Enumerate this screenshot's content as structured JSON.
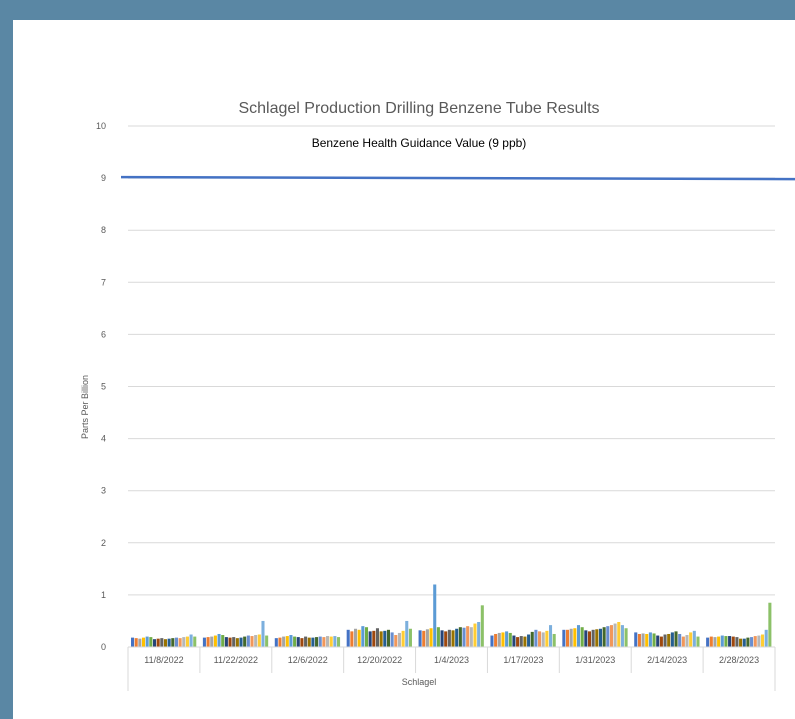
{
  "chart_data": {
    "type": "bar",
    "title": "Schlagel Production Drilling Benzene Tube Results",
    "ylabel": "Parts Per Billion",
    "xlabel": "Schlagel",
    "ylim": [
      0,
      10
    ],
    "yticks": [
      0,
      1,
      2,
      3,
      4,
      5,
      6,
      7,
      8,
      9,
      10
    ],
    "grid": true,
    "reference_line": {
      "label": "Benzene Health Guidance Value (9 ppb)",
      "value": 9,
      "color": "#4472c4"
    },
    "categories": [
      "11/8/2022",
      "11/22/2022",
      "12/6/2022",
      "12/20/2022",
      "1/4/2023",
      "1/17/2023",
      "1/31/2023",
      "2/14/2023",
      "2/28/2023"
    ],
    "series_colors": [
      "#4472c4",
      "#ed7d31",
      "#a5a5a5",
      "#ffc000",
      "#5b9bd5",
      "#70ad47",
      "#264478",
      "#9e480e",
      "#636363",
      "#997300",
      "#255e91",
      "#43682b",
      "#698ed0",
      "#f1975a",
      "#b7b7b7",
      "#ffcd33",
      "#7cafdd",
      "#8cc168"
    ],
    "groups": [
      [
        0.18,
        0.17,
        0.16,
        0.18,
        0.2,
        0.19,
        0.15,
        0.16,
        0.17,
        0.15,
        0.16,
        0.17,
        0.18,
        0.17,
        0.19,
        0.2,
        0.24,
        0.2
      ],
      [
        0.18,
        0.19,
        0.2,
        0.22,
        0.25,
        0.23,
        0.19,
        0.18,
        0.19,
        0.17,
        0.18,
        0.2,
        0.22,
        0.21,
        0.23,
        0.24,
        0.5,
        0.22
      ],
      [
        0.17,
        0.18,
        0.2,
        0.21,
        0.23,
        0.2,
        0.19,
        0.17,
        0.2,
        0.18,
        0.18,
        0.19,
        0.2,
        0.19,
        0.21,
        0.2,
        0.21,
        0.19
      ],
      [
        0.33,
        0.3,
        0.35,
        0.33,
        0.4,
        0.38,
        0.3,
        0.31,
        0.36,
        0.3,
        0.31,
        0.33,
        0.28,
        0.23,
        0.27,
        0.31,
        0.5,
        0.35
      ],
      [
        0.32,
        0.31,
        0.34,
        0.36,
        1.2,
        0.38,
        0.32,
        0.3,
        0.33,
        0.32,
        0.35,
        0.38,
        0.37,
        0.4,
        0.38,
        0.45,
        0.48,
        0.8
      ],
      [
        0.22,
        0.25,
        0.27,
        0.28,
        0.3,
        0.27,
        0.22,
        0.19,
        0.21,
        0.2,
        0.24,
        0.29,
        0.33,
        0.3,
        0.28,
        0.31,
        0.42,
        0.25
      ],
      [
        0.33,
        0.33,
        0.35,
        0.36,
        0.42,
        0.38,
        0.32,
        0.3,
        0.33,
        0.34,
        0.35,
        0.38,
        0.4,
        0.42,
        0.45,
        0.48,
        0.42,
        0.36
      ],
      [
        0.28,
        0.25,
        0.26,
        0.25,
        0.28,
        0.26,
        0.22,
        0.2,
        0.24,
        0.25,
        0.28,
        0.3,
        0.25,
        0.2,
        0.23,
        0.28,
        0.31,
        0.2
      ],
      [
        0.18,
        0.2,
        0.19,
        0.2,
        0.22,
        0.21,
        0.21,
        0.2,
        0.19,
        0.16,
        0.16,
        0.18,
        0.19,
        0.21,
        0.22,
        0.24,
        0.33,
        0.85
      ]
    ]
  }
}
